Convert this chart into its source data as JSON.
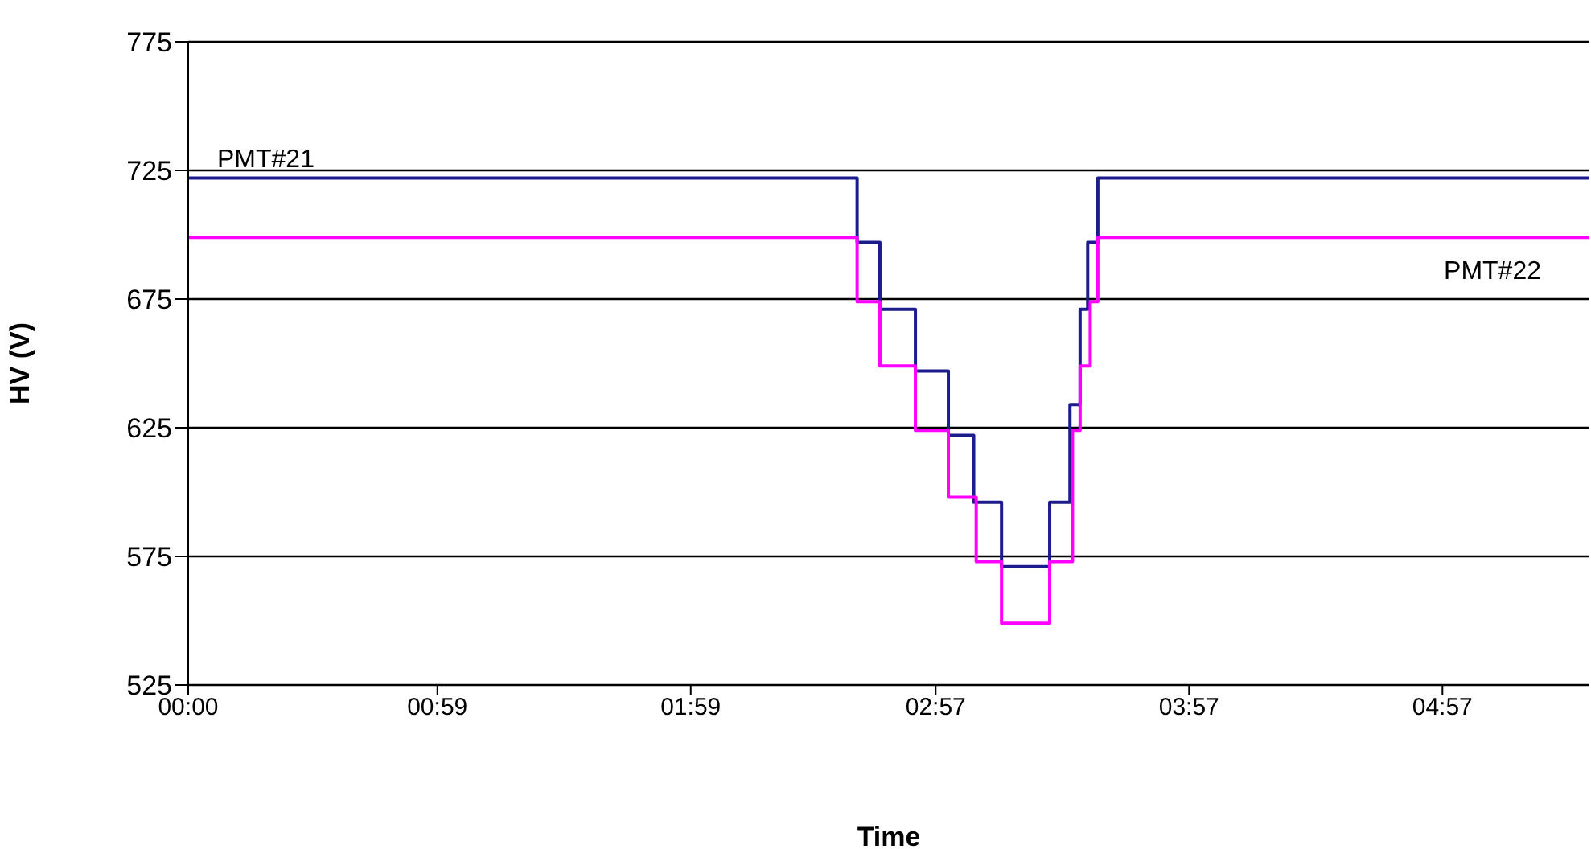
{
  "chart_data": {
    "type": "step",
    "xlabel": "Time",
    "ylabel": "HV (V)",
    "xlim": [
      0,
      5.53
    ],
    "xticks": [
      {
        "value": 0,
        "label": "00:00"
      },
      {
        "value": 0.9833,
        "label": "00:59"
      },
      {
        "value": 1.9833,
        "label": "01:59"
      },
      {
        "value": 2.95,
        "label": "02:57"
      },
      {
        "value": 3.95,
        "label": "03:57"
      },
      {
        "value": 4.95,
        "label": "04:57"
      }
    ],
    "ylim": [
      525,
      775
    ],
    "yticks": [
      525,
      575,
      625,
      675,
      725,
      775
    ],
    "grid": "y",
    "series": [
      {
        "name": "PMT#21",
        "color": "#1c1c8c",
        "x": [
          0,
          2.64,
          2.73,
          2.87,
          3.0,
          3.1,
          3.21,
          3.4,
          3.48,
          3.52,
          3.55,
          3.59,
          5.53
        ],
        "values": [
          722,
          697,
          671,
          647,
          622,
          596,
          571,
          596,
          634,
          671,
          697,
          722,
          722
        ]
      },
      {
        "name": "PMT#22",
        "color": "#ff00ff",
        "x": [
          0,
          2.64,
          2.73,
          2.87,
          3.0,
          3.11,
          3.21,
          3.4,
          3.49,
          3.52,
          3.56,
          3.59,
          5.53
        ],
        "values": [
          699,
          674,
          649,
          624,
          598,
          573,
          549,
          573,
          624,
          649,
          674,
          699,
          699
        ]
      }
    ]
  }
}
